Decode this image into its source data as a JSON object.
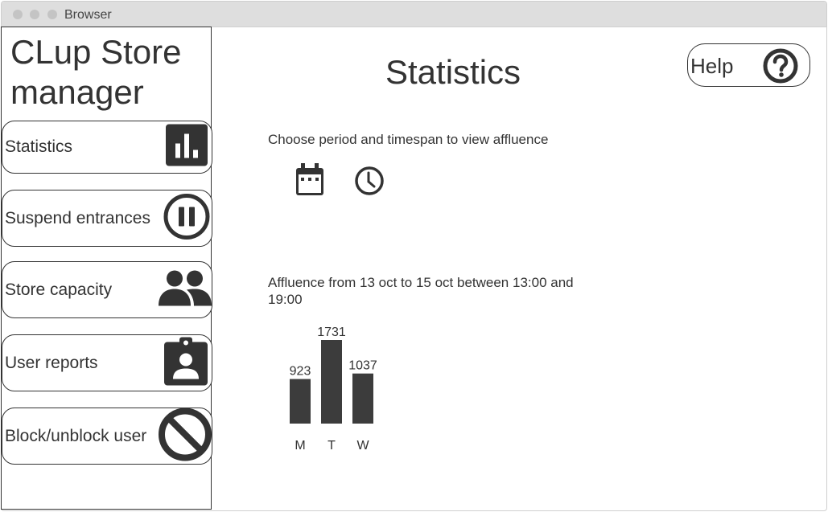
{
  "window": {
    "title": "Browser"
  },
  "sidebar": {
    "app_title": "CLup Store manager",
    "items": [
      {
        "label": "Statistics",
        "icon": "bar-chart-icon"
      },
      {
        "label": "Suspend entrances",
        "icon": "pause-icon"
      },
      {
        "label": "Store capacity",
        "icon": "people-icon"
      },
      {
        "label": "User reports",
        "icon": "user-report-icon"
      },
      {
        "label": "Block/unblock user",
        "icon": "block-icon"
      }
    ]
  },
  "main": {
    "title": "Statistics",
    "help_label": "Help",
    "period_prompt": "Choose period and timespan to view affluence",
    "chart_caption": "Affluence from 13 oct to 15 oct between 13:00 and 19:00"
  },
  "colors": {
    "ink": "#333333",
    "bar": "#3c3c3c",
    "titlebar": "#dedede"
  },
  "chart_data": {
    "type": "bar",
    "title": "",
    "categories": [
      "M",
      "T",
      "W"
    ],
    "values": [
      923,
      1731,
      1037
    ],
    "xlabel": "",
    "ylabel": "",
    "ylim": [
      0,
      1731
    ],
    "grid": false,
    "data_labels": true
  }
}
